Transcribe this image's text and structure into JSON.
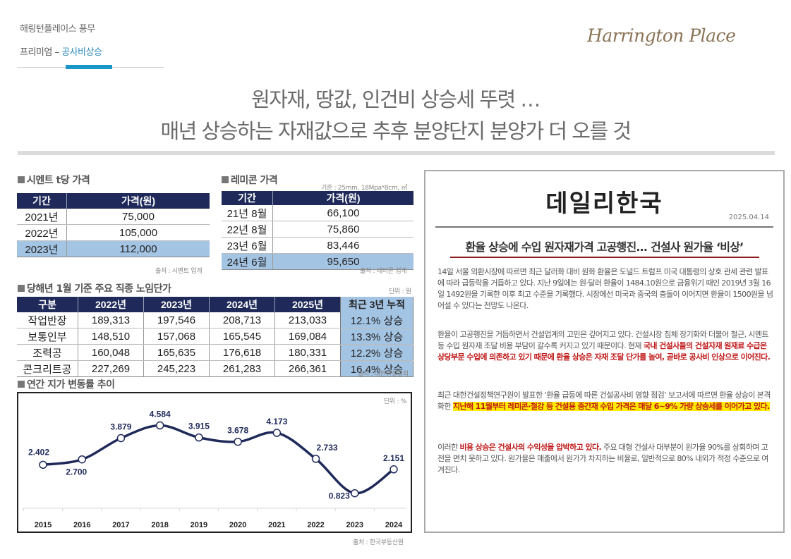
{
  "header": {
    "brand": "해링턴플레이스 풍무",
    "breadcrumb_prefix": "프리미엄 – ",
    "breadcrumb_current": "공사비상승",
    "logo_text": "Harrington Place"
  },
  "headline": {
    "line1": "원자재, 땅값, 인건비 상승세 뚜렷 …",
    "line2": "매년 상승하는 자재값으로 추후 분양단지 분양가 더 오를 것"
  },
  "cement": {
    "title": "시멘트 t당 가격",
    "headers": [
      "기간",
      "가격(원)"
    ],
    "rows": [
      [
        "2021년",
        "75,000"
      ],
      [
        "2022년",
        "105,000"
      ],
      [
        "2023년",
        "112,000"
      ]
    ],
    "highlight_row": 2,
    "source": "출처 : 시멘트 업계"
  },
  "remicon": {
    "title": "레미콘 가격",
    "basis": "기준 : 25mm, 18Mpa*8cm, ㎥",
    "headers": [
      "기간",
      "가격(원)"
    ],
    "rows": [
      [
        "21년 8월",
        "66,100"
      ],
      [
        "22년 8월",
        "75,860"
      ],
      [
        "23년 6월",
        "83,446"
      ],
      [
        "24년 6월",
        "95,650"
      ]
    ],
    "highlight_row": 3,
    "source": "출처 : 레미콘 업계"
  },
  "labor": {
    "title": "당해년 1월 기준 주요 직종 노임단가",
    "unit": "단위 : 원",
    "headers": [
      "구분",
      "2022년",
      "2023년",
      "2024년",
      "2025년",
      "최근 3년 누적"
    ],
    "rows": [
      [
        "작업반장",
        "189,313",
        "197,546",
        "208,713",
        "213,033",
        "12.1% 상승"
      ],
      [
        "보통인부",
        "148,510",
        "157,068",
        "165,545",
        "169,084",
        "13.3% 상승"
      ],
      [
        "조력공",
        "160,048",
        "165,635",
        "176,618",
        "180,331",
        "12.2% 상승"
      ],
      [
        "콘크리트공",
        "227,269",
        "245,223",
        "261,283",
        "266,361",
        "16.4% 상승"
      ]
    ],
    "source": "출처 : 대한건설협회"
  },
  "chart_data": {
    "type": "line",
    "title": "연간 지가 변동률 추이",
    "unit_label": "단위 : %",
    "categories": [
      "2015",
      "2016",
      "2017",
      "2018",
      "2019",
      "2020",
      "2021",
      "2022",
      "2023",
      "2024"
    ],
    "series": [
      {
        "name": "지가 변동률",
        "values": [
          2.402,
          2.7,
          3.879,
          4.584,
          3.915,
          3.678,
          4.173,
          2.733,
          0.823,
          2.151
        ]
      }
    ],
    "data_labels": [
      "2.402",
      "2.700",
      "3.879",
      "4.584",
      "3.915",
      "3.678",
      "4.173",
      "2.733",
      "0.823",
      "2.151"
    ],
    "xlabel": "",
    "ylabel": "",
    "ylim": [
      0,
      5
    ],
    "grid": false,
    "source": "출처 : 한국부동산원",
    "line_color": "#1f2a5a"
  },
  "news": {
    "paper": "데일리한국",
    "date": "2025.04.14",
    "headline": "환율 상승에 수입 원자재가격 고공행진... 건설사 원가율 ‘비상’",
    "p1": "14일 서울 외환시장에 따르면 최근 달러화 대비 원화 환율은 도널드 트럼프 미국 대통령의 상호 관세 관련 발표에 따라 급등락을 거듭하고 있다. 지난 9일에는 원·달러 환율이 1484.10원으로 금융위기 때인 2019년 3월 16일 1492원을 기록한 이후 최고 수준을 기록했다. 시장에선 미국과 중국의 충돌이 이어지면 환율이 1500원을 넘어설 수 있다는 전망도 나온다.",
    "p2_plain": "환율이 고공행진을 거듭하면서 건설업계의 고민은 깊어지고 있다. 건설시장 침체 장기화와 더불어 철근, 시멘트 등 수입 원자재 조달 비용 부담이 갈수록 커지고 있기 때문이다. 현재 ",
    "p2_red": "국내 건설사들의 건설자재 원재료 수급은 상당부문 수입에 의존하고 있기 때문에 환율 상승은 자재 조달 단가를 높여, 곧바로 공사비 인상으로 이어진다.",
    "p3_plain": "최근 대한건설정책연구원이 발표한 ‘환율 급등에 따른 건설공사비 영향 점검’ 보고서에 따르면 환율 상승이 본격화한 ",
    "p3_highlight": "지난해 11월부터 레미콘·철강 등 건설용 중간재 수입 가격은 매달 6~9% 가량 상승세를 이어가고 있다.",
    "p4_pre": "이러한 ",
    "p4_red": "비용 상승은 건설사의 수익성을 압박하고 있다.",
    "p4_post": " 주요 대형 건설사 대부분이 원가율 90%를 상회하며 고전을 면치 못하고 있다. 원가율은 매출에서 원가가 차지하는 비율로, 일반적으로 80% 내외가 적정 수준으로 여겨진다."
  }
}
